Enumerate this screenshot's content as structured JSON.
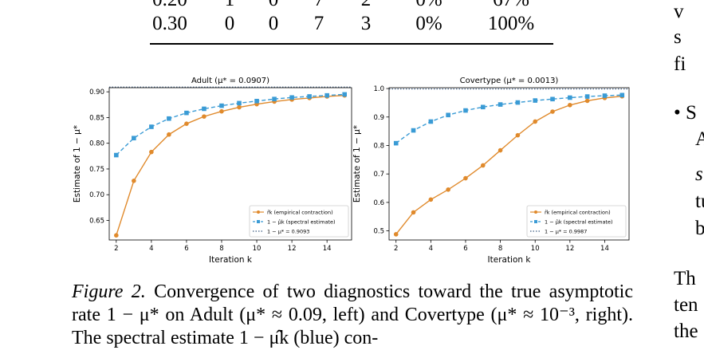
{
  "table": {
    "rows": [
      [
        "0.20",
        "1",
        "0",
        "7",
        "2",
        "0%",
        "67%"
      ],
      [
        "0.30",
        "0",
        "0",
        "7",
        "3",
        "0%",
        "100%"
      ]
    ]
  },
  "right_column": {
    "lines": [
      "v",
      "s",
      "fi",
      "• S",
      "A",
      "s",
      "tu",
      "b",
      "Th",
      "ten",
      "the"
    ]
  },
  "caption": {
    "label": "Figure 2.",
    "text": "Convergence of two diagnostics toward the true asymptotic rate 1 − μ* on Adult (μ* ≈ 0.09, left) and Covertype (μ* ≈ 10⁻³, right). The spectral estimate 1 − μ̂k (blue) con-"
  },
  "chart_data": [
    {
      "type": "line",
      "title": "Adult  (μ* = 0.0907)",
      "xlabel": "Iteration k",
      "ylabel": "Estimate of 1 − μ*",
      "xlim": [
        1.6,
        15.4
      ],
      "ylim": [
        0.612,
        0.908
      ],
      "xticks": [
        2,
        4,
        6,
        8,
        10,
        12,
        14
      ],
      "yticks": [
        0.65,
        0.7,
        0.75,
        0.8,
        0.85,
        0.9
      ],
      "ytick_labels": [
        "0.65",
        "0.70",
        "0.75",
        "0.80",
        "0.85",
        "0.90"
      ],
      "x": [
        2,
        3,
        4,
        5,
        6,
        7,
        8,
        9,
        10,
        11,
        12,
        13,
        14,
        15
      ],
      "series": [
        {
          "name": "r̂k (empirical contraction)",
          "color": "#e08a2c",
          "dashed": false,
          "marker": "circle",
          "values": [
            0.621,
            0.727,
            0.783,
            0.817,
            0.838,
            0.852,
            0.862,
            0.87,
            0.876,
            0.881,
            0.885,
            0.888,
            0.891,
            0.893
          ]
        },
        {
          "name": "1 − μ̂k (spectral estimate)",
          "color": "#3a9bd5",
          "dashed": true,
          "marker": "square",
          "values": [
            0.777,
            0.81,
            0.832,
            0.848,
            0.859,
            0.867,
            0.873,
            0.878,
            0.882,
            0.886,
            0.889,
            0.891,
            0.893,
            0.895
          ]
        }
      ],
      "reference": {
        "name": "1 − μ* = 0.9093",
        "value": 0.9093,
        "color": "#3a5a80"
      },
      "legend": "bottom-right"
    },
    {
      "type": "line",
      "title": "Covertype  (μ* = 0.0013)",
      "xlabel": "Iteration k",
      "ylabel": "Estimate of 1 − μ*",
      "xlim": [
        1.6,
        15.4
      ],
      "ylim": [
        0.468,
        1.003
      ],
      "xticks": [
        2,
        4,
        6,
        8,
        10,
        12,
        14
      ],
      "yticks": [
        0.5,
        0.6,
        0.7,
        0.8,
        0.9,
        1.0
      ],
      "ytick_labels": [
        "0.5",
        "0.6",
        "0.7",
        "0.8",
        "0.9",
        "1.0"
      ],
      "x": [
        2,
        3,
        4,
        5,
        6,
        7,
        8,
        9,
        10,
        11,
        12,
        13,
        14,
        15
      ],
      "series": [
        {
          "name": "r̂k (empirical contraction)",
          "color": "#e08a2c",
          "dashed": false,
          "marker": "circle",
          "values": [
            0.488,
            0.565,
            0.61,
            0.645,
            0.685,
            0.73,
            0.783,
            0.836,
            0.884,
            0.919,
            0.942,
            0.957,
            0.967,
            0.973
          ]
        },
        {
          "name": "1 − μ̂k (spectral estimate)",
          "color": "#3a9bd5",
          "dashed": true,
          "marker": "square",
          "values": [
            0.808,
            0.853,
            0.884,
            0.907,
            0.923,
            0.935,
            0.944,
            0.951,
            0.958,
            0.963,
            0.968,
            0.972,
            0.975,
            0.977
          ]
        }
      ],
      "reference": {
        "name": "1 − μ* = 0.9987",
        "value": 0.9987,
        "color": "#3a5a80"
      },
      "legend": "bottom-right"
    }
  ]
}
